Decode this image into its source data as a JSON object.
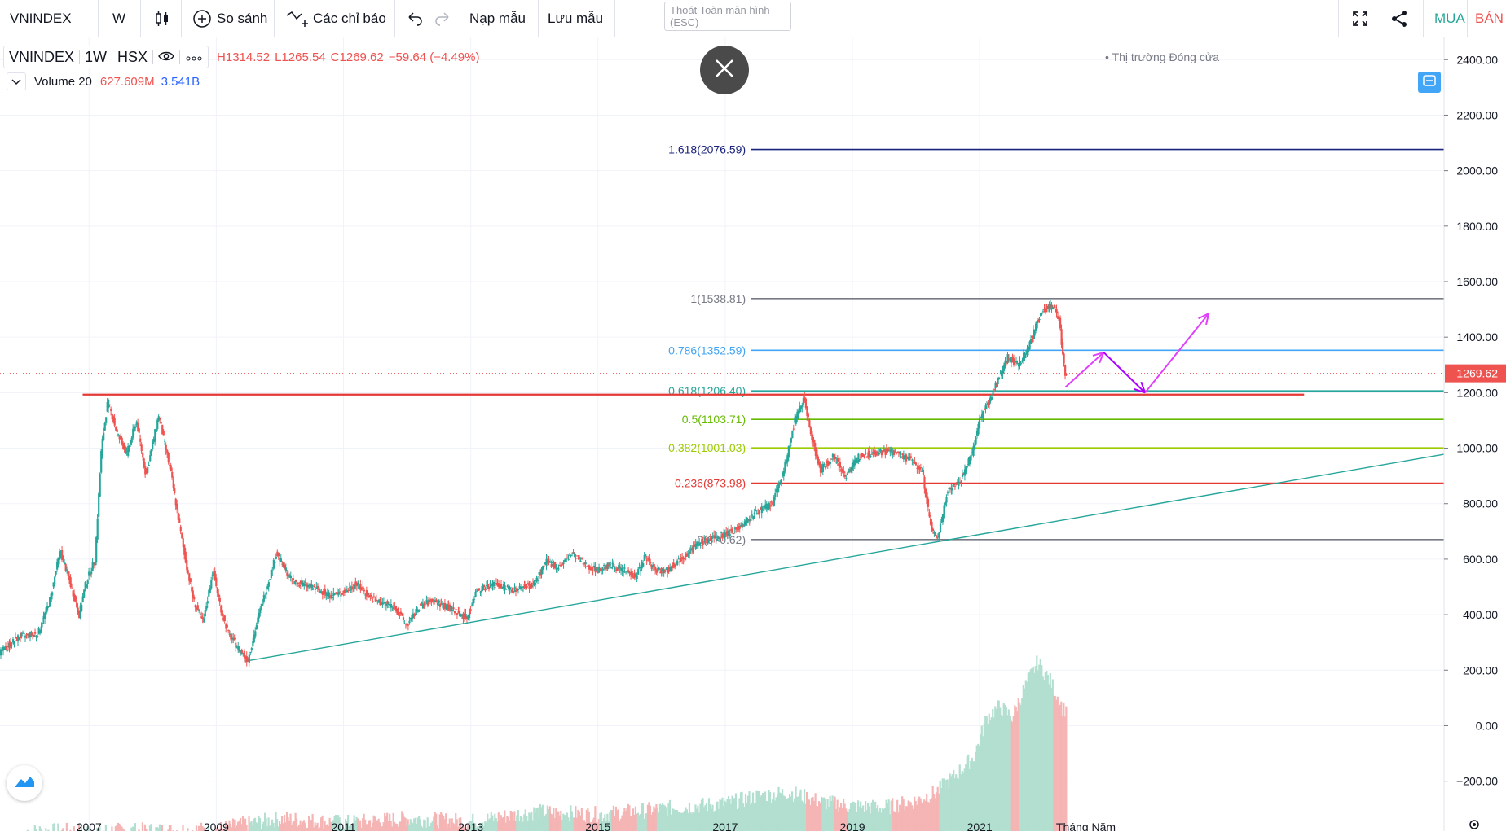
{
  "toolbar": {
    "symbol": "VNINDEX",
    "interval": "W",
    "compare_label": "So sánh",
    "indicators_label": "Các chỉ báo",
    "load_layout_label": "Nạp mẫu",
    "save_layout_label": "Lưu mẫu",
    "exit_fullscreen_label": "Thoát Toàn màn hình (ESC)",
    "buy_label": "MUA",
    "sell_label": "BÁN",
    "icons": [
      "candles-icon",
      "plus-circle-icon",
      "indicators-icon",
      "undo-icon",
      "redo-icon",
      "fullscreen-icon",
      "share-icon"
    ],
    "buy_color": "#26a69a",
    "sell_color": "#ef5350"
  },
  "legend": {
    "symbol": "VNINDEX",
    "interval": "1W",
    "exchange": "HSX",
    "high": "H1314.52",
    "low": "L1265.54",
    "close": "C1269.62",
    "change": "−59.64 (−4.49%)",
    "volume_label": "Volume 20",
    "volume_ma": "627.609M",
    "volume_value": "3.541B",
    "market_status": "Thị trường Đóng cửa"
  },
  "chart_data": {
    "type": "candlestick",
    "last_price_label": "1269.62",
    "last_price": 1269.62,
    "y_ticks": [
      "2400.00",
      "2200.00",
      "2000.00",
      "1800.00",
      "1600.00",
      "1400.00",
      "1200.00",
      "1000.00",
      "800.00",
      "600.00",
      "400.00",
      "200.00",
      "0.00",
      "−200.00"
    ],
    "y_tick_values": [
      2400,
      2200,
      2000,
      1800,
      1600,
      1400,
      1200,
      1000,
      800,
      600,
      400,
      200,
      0,
      -200
    ],
    "ylim": [
      -380,
      2480
    ],
    "x_ticks": [
      "2007",
      "2009",
      "2011",
      "2013",
      "2015",
      "2017",
      "2019",
      "2021",
      "Tháng Năm"
    ],
    "x_tick_values": [
      2007.0,
      2009.0,
      2011.0,
      2013.0,
      2015.0,
      2017.0,
      2019.0,
      2021.0,
      2022.67
    ],
    "xlim": [
      2005.6,
      2028.3
    ],
    "price_path": [
      [
        2005.6,
        260
      ],
      [
        2005.9,
        320
      ],
      [
        2006.2,
        330
      ],
      [
        2006.4,
        460
      ],
      [
        2006.55,
        630
      ],
      [
        2006.7,
        520
      ],
      [
        2006.85,
        400
      ],
      [
        2006.95,
        510
      ],
      [
        2007.1,
        600
      ],
      [
        2007.2,
        1000
      ],
      [
        2007.3,
        1170
      ],
      [
        2007.45,
        1050
      ],
      [
        2007.6,
        980
      ],
      [
        2007.75,
        1100
      ],
      [
        2007.9,
        900
      ],
      [
        2008.1,
        1120
      ],
      [
        2008.3,
        900
      ],
      [
        2008.5,
        620
      ],
      [
        2008.65,
        450
      ],
      [
        2008.8,
        370
      ],
      [
        2008.95,
        560
      ],
      [
        2009.1,
        400
      ],
      [
        2009.2,
        330
      ],
      [
        2009.35,
        280
      ],
      [
        2009.5,
        235
      ],
      [
        2009.7,
        420
      ],
      [
        2009.95,
        620
      ],
      [
        2010.2,
        520
      ],
      [
        2010.5,
        500
      ],
      [
        2010.8,
        470
      ],
      [
        2011.0,
        480
      ],
      [
        2011.2,
        510
      ],
      [
        2011.5,
        450
      ],
      [
        2011.8,
        430
      ],
      [
        2012.0,
        360
      ],
      [
        2012.2,
        430
      ],
      [
        2012.4,
        450
      ],
      [
        2012.7,
        420
      ],
      [
        2012.95,
        390
      ],
      [
        2013.1,
        490
      ],
      [
        2013.4,
        510
      ],
      [
        2013.7,
        490
      ],
      [
        2014.0,
        510
      ],
      [
        2014.2,
        590
      ],
      [
        2014.4,
        570
      ],
      [
        2014.6,
        620
      ],
      [
        2014.8,
        580
      ],
      [
        2015.0,
        560
      ],
      [
        2015.2,
        580
      ],
      [
        2015.4,
        560
      ],
      [
        2015.6,
        540
      ],
      [
        2015.75,
        610
      ],
      [
        2015.9,
        560
      ],
      [
        2016.1,
        560
      ],
      [
        2016.3,
        600
      ],
      [
        2016.6,
        660
      ],
      [
        2016.9,
        680
      ],
      [
        2017.2,
        710
      ],
      [
        2017.5,
        770
      ],
      [
        2017.75,
        800
      ],
      [
        2017.95,
        940
      ],
      [
        2018.1,
        1100
      ],
      [
        2018.25,
        1180
      ],
      [
        2018.35,
        1050
      ],
      [
        2018.5,
        920
      ],
      [
        2018.7,
        970
      ],
      [
        2018.9,
        900
      ],
      [
        2019.1,
        970
      ],
      [
        2019.3,
        980
      ],
      [
        2019.6,
        990
      ],
      [
        2019.9,
        960
      ],
      [
        2020.1,
        920
      ],
      [
        2020.25,
        700
      ],
      [
        2020.35,
        680
      ],
      [
        2020.5,
        850
      ],
      [
        2020.7,
        880
      ],
      [
        2020.9,
        990
      ],
      [
        2021.0,
        1100
      ],
      [
        2021.15,
        1170
      ],
      [
        2021.3,
        1250
      ],
      [
        2021.45,
        1330
      ],
      [
        2021.6,
        1300
      ],
      [
        2021.75,
        1350
      ],
      [
        2021.9,
        1450
      ],
      [
        2022.0,
        1500
      ],
      [
        2022.15,
        1510
      ],
      [
        2022.25,
        1470
      ],
      [
        2022.3,
        1360
      ],
      [
        2022.35,
        1270
      ]
    ],
    "volume_path": [
      [
        2006.0,
        -380
      ],
      [
        2008.0,
        -378
      ],
      [
        2009.0,
        -375
      ],
      [
        2009.3,
        -360
      ],
      [
        2010.0,
        -335
      ],
      [
        2011.0,
        -350
      ],
      [
        2012.0,
        -335
      ],
      [
        2013.0,
        -345
      ],
      [
        2014.0,
        -310
      ],
      [
        2015.0,
        -320
      ],
      [
        2016.0,
        -300
      ],
      [
        2017.0,
        -280
      ],
      [
        2017.5,
        -255
      ],
      [
        2018.0,
        -240
      ],
      [
        2018.5,
        -275
      ],
      [
        2019.0,
        -290
      ],
      [
        2019.5,
        -295
      ],
      [
        2020.0,
        -270
      ],
      [
        2020.3,
        -240
      ],
      [
        2020.6,
        -180
      ],
      [
        2020.9,
        -110
      ],
      [
        2021.1,
        30
      ],
      [
        2021.3,
        70
      ],
      [
        2021.5,
        30
      ],
      [
        2021.7,
        140
      ],
      [
        2021.9,
        230
      ],
      [
        2022.1,
        160
      ],
      [
        2022.3,
        60
      ]
    ],
    "fibonacci": [
      {
        "label": "1.618(2076.59)",
        "value": 2076.59,
        "color": "#1a237e"
      },
      {
        "label": "1(1538.81)",
        "value": 1538.81,
        "color": "#787b86"
      },
      {
        "label": "0.786(1352.59)",
        "value": 1352.59,
        "color": "#42a5f5"
      },
      {
        "label": "0.618(1206.40)",
        "value": 1206.4,
        "color": "#26a69a"
      },
      {
        "label": "0.5(1103.71)",
        "value": 1103.71,
        "color": "#66bb00"
      },
      {
        "label": "0.382(1001.03)",
        "value": 1001.03,
        "color": "#9ccc00"
      },
      {
        "label": "0.236(873.98)",
        "value": 873.98,
        "color": "#e53935"
      },
      {
        "label": "0(670.62)",
        "value": 670.62,
        "color": "#787b86"
      }
    ],
    "fib_x_start": 2017.4,
    "horizontal_line": {
      "value": 1193,
      "x_start": 2006.9,
      "x_end": 2026.1,
      "color": "#e53935"
    },
    "trend_line": {
      "from": [
        2009.45,
        232
      ],
      "to": [
        2028.3,
        978
      ],
      "color": "#26a69a"
    },
    "projection_arrows": [
      {
        "from": [
          2022.35,
          1220
        ],
        "to": [
          2022.95,
          1345
        ],
        "color": "#e040fb"
      },
      {
        "from": [
          2022.95,
          1345
        ],
        "to": [
          2023.6,
          1200
        ],
        "color": "#aa00ff"
      },
      {
        "from": [
          2023.6,
          1200
        ],
        "to": [
          2024.6,
          1485
        ],
        "color": "#e040fb"
      }
    ],
    "dotted_last_price_color": "#ef5350",
    "grid": true,
    "volume_up_color": "#b2dfcf",
    "volume_down_color": "#f5b5b5"
  }
}
